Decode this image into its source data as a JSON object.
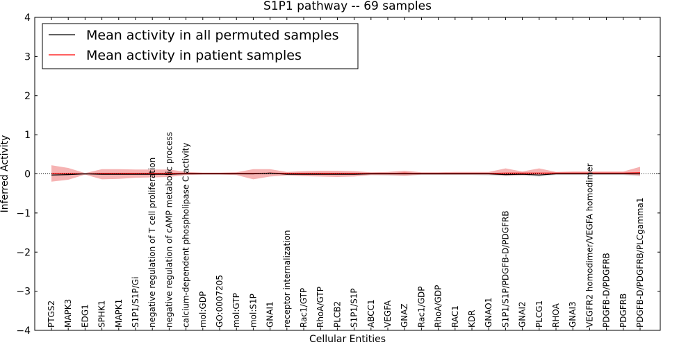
{
  "chart_data": {
    "type": "line",
    "title": "S1P1 pathway -- 69 samples",
    "xlabel": "Cellular Entities",
    "ylabel": "Inferred Activity",
    "ylim": [
      -4,
      4
    ],
    "yticks": [
      -4,
      -3,
      -2,
      -1,
      0,
      1,
      2,
      3,
      4
    ],
    "ytick_labels": [
      "−4",
      "−3",
      "−2",
      "−1",
      "0",
      "1",
      "2",
      "3",
      "4"
    ],
    "categories": [
      "PTGS2",
      "MAPK3",
      "EDG1",
      "SPHK1",
      "MAPK1",
      "S1P1/S1P/Gi",
      "negative regulation of T cell proliferation",
      "negative regulation of cAMP metabolic process",
      "calcium-dependent phospholipase C activity",
      "mol:GDP",
      "GO:0007205",
      "mol:GTP",
      "mol:S1P",
      "GNAI1",
      "receptor internalization",
      "Rac1/GTP",
      "RhoA/GTP",
      "PLCB2",
      "S1P1/S1P",
      "ABCC1",
      "VEGFA",
      "GNAZ",
      "Rac1/GDP",
      "RhoA/GDP",
      "RAC1",
      "KDR",
      "GNAO1",
      "S1P1/S1P/PDGFB-D/PDGFRB",
      "GNAI2",
      "PLCG1",
      "RHOA",
      "GNAI3",
      "VEGFR2 homodimer/VEGFA homodimer",
      "PDGFB-D/PDGFRB",
      "PDGFRB",
      "PDGFB-D/PDGFRB/PLCgamma1"
    ],
    "series": [
      {
        "name": "Mean activity in all permuted samples",
        "color": "#000000",
        "values": [
          -0.03,
          -0.02,
          0.0,
          -0.01,
          -0.01,
          -0.01,
          -0.01,
          -0.01,
          0.0,
          0.0,
          0.0,
          0.0,
          0.0,
          0.02,
          -0.01,
          -0.01,
          -0.01,
          -0.01,
          -0.01,
          0.0,
          0.0,
          0.0,
          0.0,
          0.0,
          0.0,
          0.0,
          0.0,
          -0.02,
          -0.01,
          -0.03,
          0.0,
          0.0,
          0.0,
          0.0,
          0.0,
          0.0
        ],
        "band_upper": [
          -0.01,
          -0.01,
          0.0,
          0.0,
          0.0,
          0.0,
          0.0,
          0.0,
          0.0,
          0.0,
          0.0,
          0.0,
          0.0,
          0.02,
          0.0,
          0.0,
          0.0,
          0.0,
          0.0,
          0.0,
          0.0,
          0.0,
          0.0,
          0.0,
          0.0,
          0.0,
          0.0,
          0.0,
          0.0,
          0.0,
          0.0,
          0.0,
          0.0,
          0.0,
          0.0,
          0.0
        ],
        "band_lower": [
          -0.05,
          -0.04,
          0.0,
          -0.03,
          -0.03,
          -0.03,
          -0.02,
          -0.02,
          -0.01,
          -0.01,
          -0.01,
          -0.01,
          -0.02,
          -0.02,
          -0.02,
          -0.03,
          -0.03,
          -0.03,
          -0.03,
          -0.03,
          -0.04,
          -0.04,
          -0.03,
          -0.03,
          -0.03,
          -0.03,
          -0.04,
          -0.06,
          -0.05,
          -0.07,
          -0.03,
          -0.03,
          -0.03,
          -0.03,
          -0.03,
          -0.06
        ]
      },
      {
        "name": "Mean activity in patient samples",
        "color": "#ff0000",
        "band_color": "#f08080",
        "values": [
          0.01,
          0.01,
          0.0,
          0.01,
          0.01,
          0.01,
          0.01,
          0.01,
          0.01,
          0.01,
          0.01,
          0.01,
          0.01,
          0.02,
          0.01,
          0.01,
          0.01,
          0.01,
          0.01,
          0.01,
          0.01,
          0.02,
          0.01,
          0.01,
          0.01,
          0.01,
          0.01,
          0.02,
          0.02,
          0.02,
          0.02,
          0.02,
          0.02,
          0.02,
          0.02,
          0.03
        ],
        "band_upper": [
          0.22,
          0.15,
          0.02,
          0.12,
          0.12,
          0.11,
          0.11,
          0.11,
          0.05,
          0.03,
          0.03,
          0.04,
          0.12,
          0.12,
          0.05,
          0.07,
          0.08,
          0.08,
          0.07,
          0.04,
          0.05,
          0.08,
          0.04,
          0.04,
          0.05,
          0.05,
          0.05,
          0.14,
          0.06,
          0.14,
          0.05,
          0.06,
          0.06,
          0.06,
          0.06,
          0.18
        ],
        "band_lower": [
          -0.2,
          -0.15,
          -0.02,
          -0.14,
          -0.13,
          -0.1,
          -0.09,
          -0.08,
          -0.03,
          -0.02,
          -0.02,
          -0.03,
          -0.14,
          -0.07,
          -0.04,
          -0.06,
          -0.07,
          -0.08,
          -0.07,
          -0.03,
          -0.03,
          -0.05,
          -0.02,
          -0.02,
          -0.02,
          -0.02,
          -0.02,
          -0.04,
          -0.03,
          -0.03,
          -0.01,
          -0.01,
          -0.01,
          -0.01,
          -0.01,
          -0.04
        ]
      }
    ],
    "legend_position": "top-left",
    "zero_line": "dotted"
  }
}
